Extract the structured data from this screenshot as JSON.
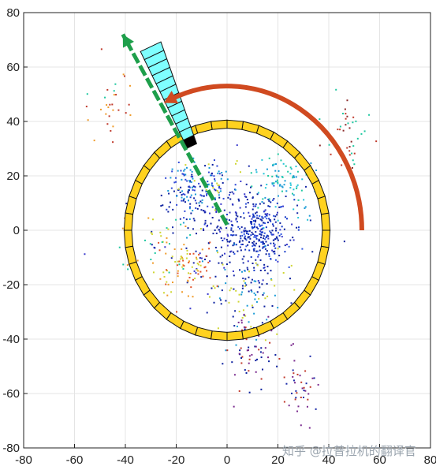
{
  "chart_data": {
    "type": "scatter",
    "title": "",
    "xlabel": "",
    "ylabel": "",
    "xlim": [
      -80,
      80
    ],
    "ylim": [
      -80,
      80
    ],
    "xticks": [
      -80,
      -60,
      -40,
      -20,
      0,
      20,
      40,
      60,
      80
    ],
    "yticks": [
      -80,
      -60,
      -40,
      -20,
      0,
      20,
      40,
      60,
      80
    ],
    "grid": true,
    "legend": "none",
    "ring": {
      "center": [
        0,
        0
      ],
      "inner_radius": 37.5,
      "outer_radius": 40.5,
      "segments": 40,
      "color": "#FFD21F"
    },
    "sector": {
      "angle_deg": 114,
      "r_start": 34,
      "r_end": 74,
      "cells": 12,
      "cell_color": "#7FFFFF",
      "highlight_color": "#000000",
      "highlight_index": 0
    },
    "direction_arrow": {
      "from": [
        0,
        2
      ],
      "to": [
        -41,
        72
      ],
      "color": "#1E9F4B"
    },
    "rotation_arc": {
      "radius": 53,
      "start_deg": 0,
      "end_deg": 115,
      "color": "#D04A20"
    },
    "point_clusters": [
      {
        "cx": 12,
        "cy": 0,
        "sx": 6,
        "sy": 6,
        "n": 220,
        "colors": [
          "#0a1f9e",
          "#1238c8",
          "#2f56e0"
        ]
      },
      {
        "cx": 0,
        "cy": 0,
        "sx": 14,
        "sy": 10,
        "n": 220,
        "colors": [
          "#0a1f9e",
          "#1a2aa8",
          "#3a3acc"
        ]
      },
      {
        "cx": -16,
        "cy": 15,
        "sx": 6,
        "sy": 6,
        "n": 120,
        "colors": [
          "#0a1f9e",
          "#2d46d6",
          "#1a9bd6"
        ]
      },
      {
        "cx": 22,
        "cy": 18,
        "sx": 7,
        "sy": 5,
        "n": 90,
        "colors": [
          "#1a9bd6",
          "#25c4d8",
          "#1ec8a0"
        ]
      },
      {
        "cx": 8,
        "cy": -22,
        "sx": 8,
        "sy": 9,
        "n": 110,
        "colors": [
          "#0a1f9e",
          "#1a9bd6",
          "#cfd632"
        ]
      },
      {
        "cx": -17,
        "cy": -14,
        "sx": 6,
        "sy": 6,
        "n": 80,
        "colors": [
          "#cfd632",
          "#ef9b2a",
          "#e2542a"
        ]
      },
      {
        "cx": 10,
        "cy": -44,
        "sx": 6,
        "sy": 7,
        "n": 70,
        "colors": [
          "#0a1f9e",
          "#7a2a8e",
          "#c0392b"
        ]
      },
      {
        "cx": 28,
        "cy": -58,
        "sx": 4,
        "sy": 6,
        "n": 40,
        "colors": [
          "#1a2aa8",
          "#c0392b",
          "#7a2a8e"
        ]
      },
      {
        "cx": 48,
        "cy": 34,
        "sx": 5,
        "sy": 8,
        "n": 45,
        "colors": [
          "#c0392b",
          "#1ec8a0",
          "#8b2a2a"
        ]
      },
      {
        "cx": -45,
        "cy": 50,
        "sx": 4,
        "sy": 7,
        "n": 30,
        "colors": [
          "#ef9b2a",
          "#1ec8a0",
          "#c0392b"
        ]
      },
      {
        "cx": -6,
        "cy": 18,
        "sx": 5,
        "sy": 4,
        "n": 50,
        "colors": [
          "#1a9bd6",
          "#cfd632",
          "#2d46d6"
        ]
      },
      {
        "cx": -30,
        "cy": -5,
        "sx": 8,
        "sy": 6,
        "n": 40,
        "colors": [
          "#1ec8a0",
          "#cfd632",
          "#ef9b2a"
        ]
      }
    ],
    "watermark": "知乎 @拉普拉机的翻译官"
  }
}
